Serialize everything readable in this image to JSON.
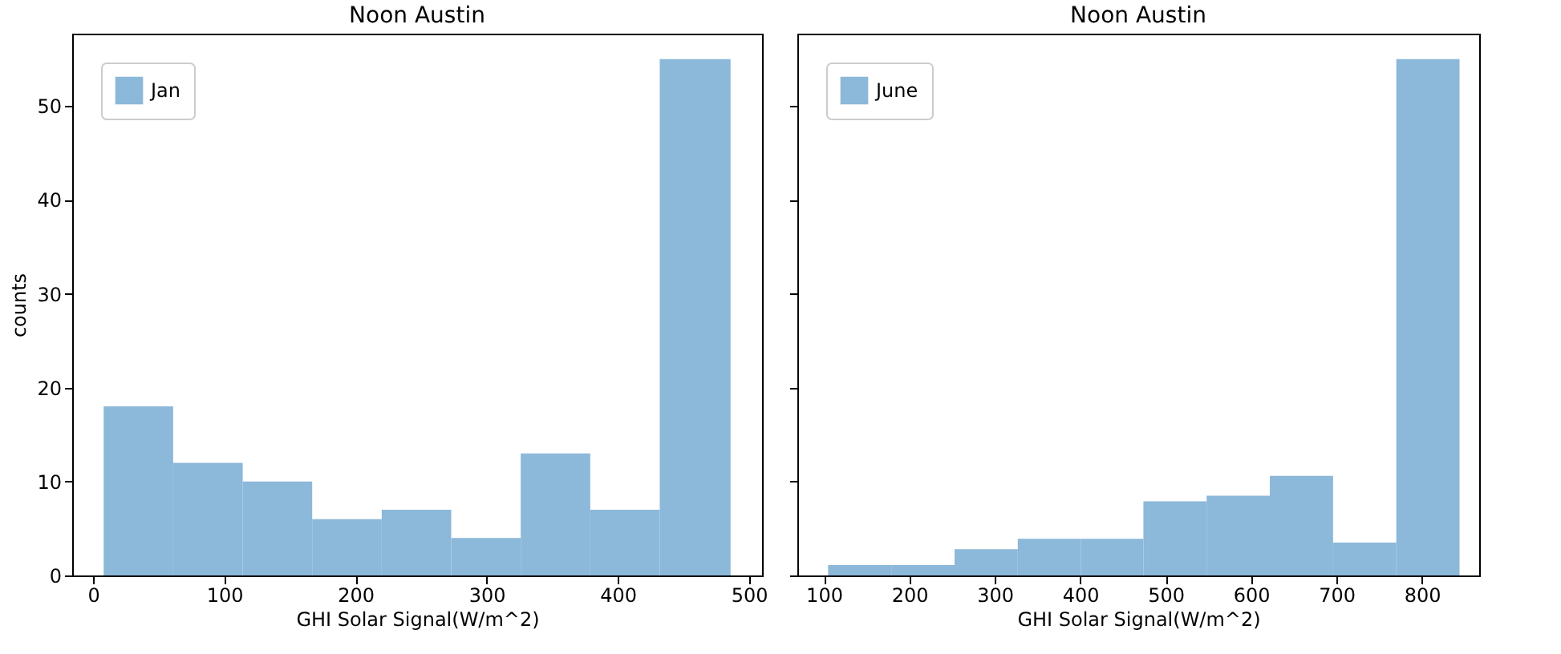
{
  "chart_data": [
    {
      "type": "histogram",
      "title": "Noon Austin",
      "xlabel": "GHI Solar Signal(W/m^2)",
      "ylabel": "counts",
      "bins": [
        8,
        61,
        114,
        167,
        220,
        273,
        326,
        379,
        432,
        486
      ],
      "series": [
        {
          "name": "Jan",
          "color": "#8cb8d9",
          "values": [
            18,
            12,
            10,
            6,
            7,
            4,
            13,
            7,
            55
          ]
        }
      ],
      "xlim": [
        -16,
        510
      ],
      "xticks": [
        0,
        100,
        200,
        300,
        400,
        500
      ],
      "ylim": [
        0,
        57.7
      ],
      "yticks": [
        0,
        10,
        20,
        30,
        40,
        50
      ],
      "legend": "top left",
      "grid": false
    },
    {
      "type": "histogram",
      "title": "Noon Austin",
      "xlabel": "GHI Solar Signal(W/m^2)",
      "bins": [
        105,
        179,
        253,
        327,
        401,
        474,
        548,
        622,
        696,
        770,
        844
      ],
      "series": [
        {
          "name": "June",
          "color": "#8cb8d9",
          "values": [
            1.1,
            1.1,
            2.8,
            3.9,
            3.9,
            7.9,
            8.5,
            10.6,
            3.5,
            55
          ]
        }
      ],
      "xlim": [
        69,
        867
      ],
      "xticks": [
        100,
        200,
        300,
        400,
        500,
        600,
        700,
        800
      ],
      "ylim": [
        0,
        57.7
      ],
      "yticks": [
        0,
        10,
        20,
        30,
        40,
        50
      ],
      "tick_labels": "x",
      "legend": "top left",
      "grid": false
    }
  ]
}
